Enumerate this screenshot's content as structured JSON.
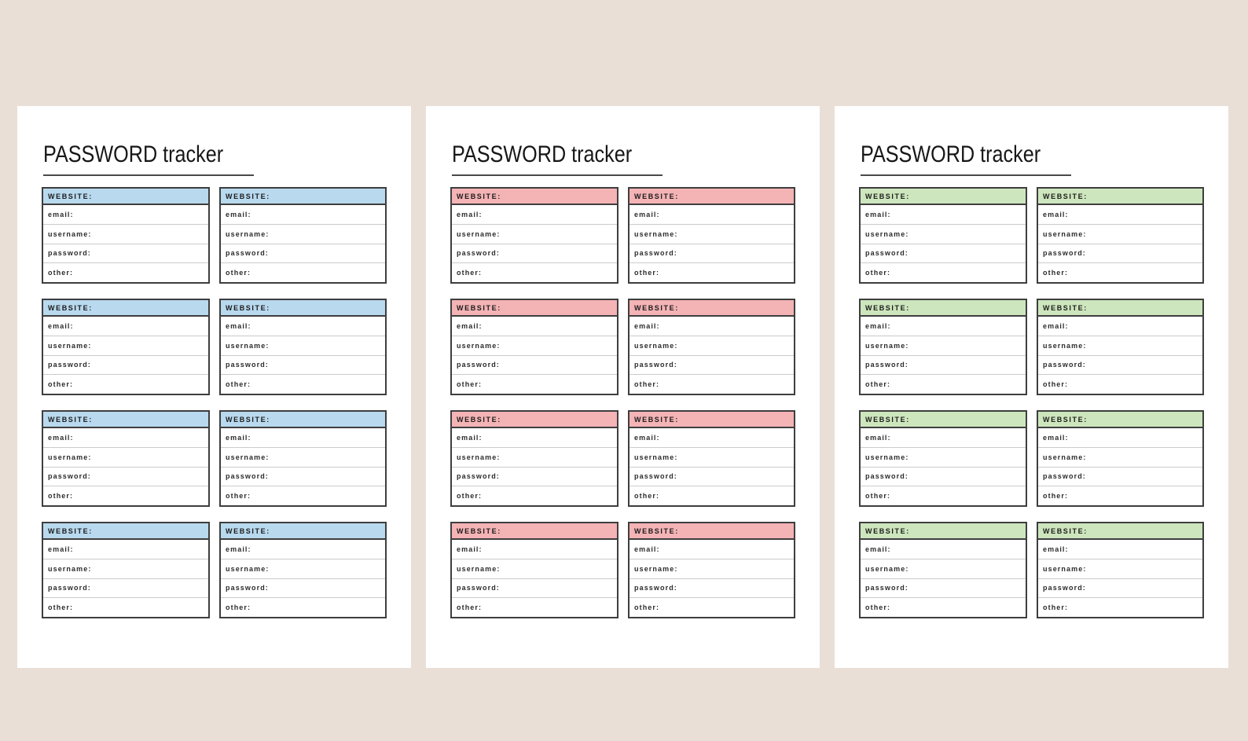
{
  "background_color": "#e9dfd7",
  "page_color": "#ffffff",
  "border_color": "#3e3e3e",
  "divider_color": "#cbcbcb",
  "pages": [
    {
      "name": "blue",
      "title": "PASSWORD tracker",
      "accent": "#b8d9ee",
      "cards": [
        {
          "header": "WEBSITE:",
          "fields": [
            "email:",
            "username:",
            "password:",
            "other:"
          ]
        },
        {
          "header": "WEBSITE:",
          "fields": [
            "email:",
            "username:",
            "password:",
            "other:"
          ]
        },
        {
          "header": "WEBSITE:",
          "fields": [
            "email:",
            "username:",
            "password:",
            "other:"
          ]
        },
        {
          "header": "WEBSITE:",
          "fields": [
            "email:",
            "username:",
            "password:",
            "other:"
          ]
        },
        {
          "header": "WEBSITE:",
          "fields": [
            "email:",
            "username:",
            "password:",
            "other:"
          ]
        },
        {
          "header": "WEBSITE:",
          "fields": [
            "email:",
            "username:",
            "password:",
            "other:"
          ]
        },
        {
          "header": "WEBSITE:",
          "fields": [
            "email:",
            "username:",
            "password:",
            "other:"
          ]
        },
        {
          "header": "WEBSITE:",
          "fields": [
            "email:",
            "username:",
            "password:",
            "other:"
          ]
        }
      ]
    },
    {
      "name": "pink",
      "title": "PASSWORD tracker",
      "accent": "#f4b3b5",
      "cards": [
        {
          "header": "WEBSITE:",
          "fields": [
            "email:",
            "username:",
            "password:",
            "other:"
          ]
        },
        {
          "header": "WEBSITE:",
          "fields": [
            "email:",
            "username:",
            "password:",
            "other:"
          ]
        },
        {
          "header": "WEBSITE:",
          "fields": [
            "email:",
            "username:",
            "password:",
            "other:"
          ]
        },
        {
          "header": "WEBSITE:",
          "fields": [
            "email:",
            "username:",
            "password:",
            "other:"
          ]
        },
        {
          "header": "WEBSITE:",
          "fields": [
            "email:",
            "username:",
            "password:",
            "other:"
          ]
        },
        {
          "header": "WEBSITE:",
          "fields": [
            "email:",
            "username:",
            "password:",
            "other:"
          ]
        },
        {
          "header": "WEBSITE:",
          "fields": [
            "email:",
            "username:",
            "password:",
            "other:"
          ]
        },
        {
          "header": "WEBSITE:",
          "fields": [
            "email:",
            "username:",
            "password:",
            "other:"
          ]
        }
      ]
    },
    {
      "name": "green",
      "title": "PASSWORD tracker",
      "accent": "#cde6bd",
      "cards": [
        {
          "header": "WEBSITE:",
          "fields": [
            "email:",
            "username:",
            "password:",
            "other:"
          ]
        },
        {
          "header": "WEBSITE:",
          "fields": [
            "email:",
            "username:",
            "password:",
            "other:"
          ]
        },
        {
          "header": "WEBSITE:",
          "fields": [
            "email:",
            "username:",
            "password:",
            "other:"
          ]
        },
        {
          "header": "WEBSITE:",
          "fields": [
            "email:",
            "username:",
            "password:",
            "other:"
          ]
        },
        {
          "header": "WEBSITE:",
          "fields": [
            "email:",
            "username:",
            "password:",
            "other:"
          ]
        },
        {
          "header": "WEBSITE:",
          "fields": [
            "email:",
            "username:",
            "password:",
            "other:"
          ]
        },
        {
          "header": "WEBSITE:",
          "fields": [
            "email:",
            "username:",
            "password:",
            "other:"
          ]
        },
        {
          "header": "WEBSITE:",
          "fields": [
            "email:",
            "username:",
            "password:",
            "other:"
          ]
        }
      ]
    }
  ]
}
